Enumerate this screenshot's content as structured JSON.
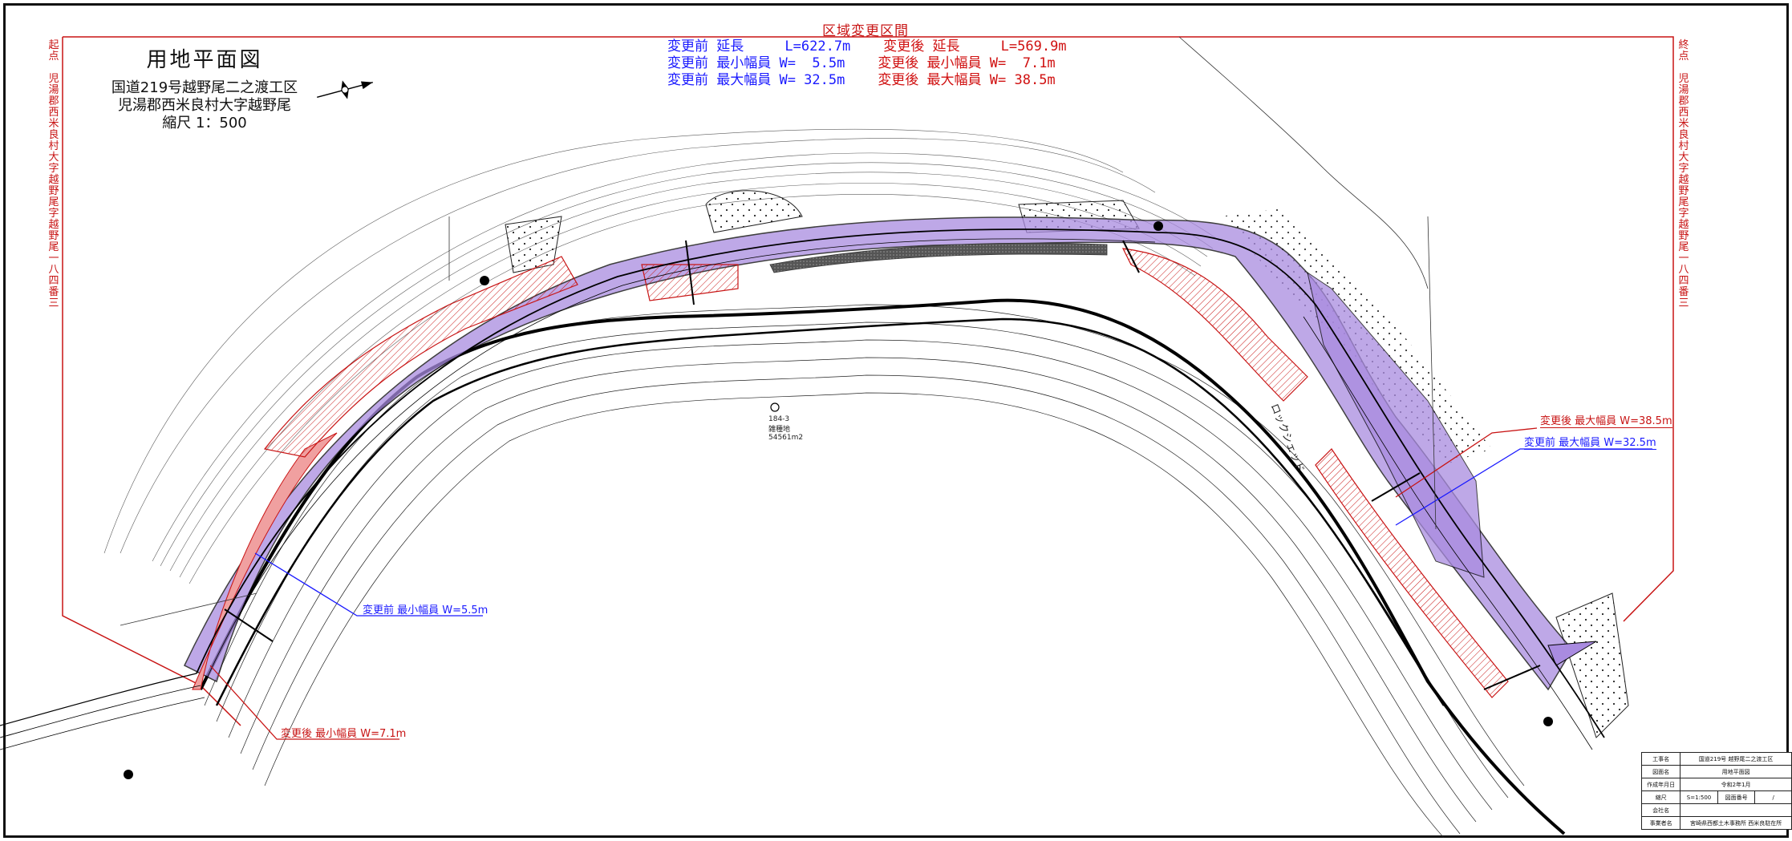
{
  "zone_title": "区域変更区間",
  "drawing_title": {
    "title": "用地平面図",
    "route": "国道219号越野尾二之渡工区",
    "place": "児湯郡西米良村大字越野尾",
    "scale": "縮尺  1：500"
  },
  "summary": {
    "before_length": "変更前 延長     L=622.7m",
    "after_length": "変更後 延長     L=569.9m",
    "before_min": "変更前 最小幅員 W=  5.5m",
    "after_min": "変更後 最小幅員 W=  7.1m",
    "before_max": "変更前 最大幅員 W= 32.5m",
    "after_max": "変更後 最大幅員 W= 38.5m"
  },
  "start_label": {
    "heading": "起点",
    "address": "児湯郡西米良村大字越野尾字越野尾一八四番三"
  },
  "end_label": {
    "heading": "終点",
    "address": "児湯郡西米良村大字越野尾字越野尾一八四番三"
  },
  "callouts": {
    "after_max": "変更後 最大幅員 W=38.5m",
    "before_max": "変更前 最大幅員 W=32.5m",
    "before_min": "変更前 最小幅員 W=5.5m",
    "after_min": "変更後 最小幅員 W=7.1m"
  },
  "parcel": {
    "number": "184-3",
    "use": "雑種地",
    "area": "54561m2"
  },
  "road_label": "ロックシェッド",
  "title_table": {
    "rows": [
      {
        "h": "工事名",
        "v": "国道219号 越野尾二之渡工区"
      },
      {
        "h": "図面名",
        "v": "用地平面図"
      },
      {
        "h": "作成年月日",
        "v": "令和2年1月"
      },
      {
        "h": "縮尺",
        "v": "S=1:500",
        "h2": "図面番号",
        "v2": "/"
      },
      {
        "h": "会社名",
        "v": ""
      },
      {
        "h": "事業者名",
        "v": "宮崎県西都土木事務所 西米良駐在所"
      }
    ]
  },
  "colors": {
    "zone_red": "#c81414",
    "before_blue": "#1a1aff",
    "after_area": "#a98be0",
    "change_area": "#f0a0a0"
  }
}
